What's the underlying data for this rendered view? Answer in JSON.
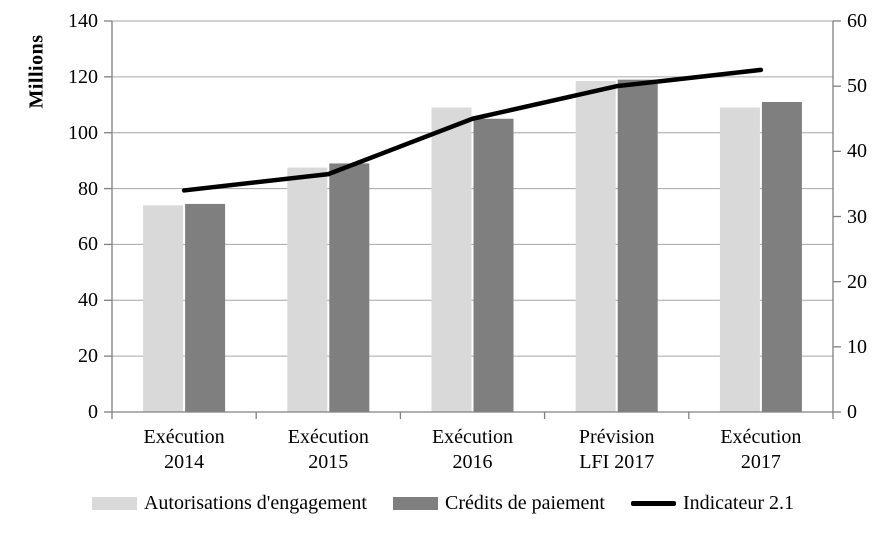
{
  "chart_data": {
    "type": "bar",
    "subtype": "combo-bar-line",
    "title": "",
    "ylabel": "Millions",
    "xlabel": "",
    "grid": true,
    "legend_position": "bottom",
    "categories": [
      "Exécution\n2014",
      "Exécution\n2015",
      "Exécution\n2016",
      "Prévision\nLFI 2017",
      "Exécution\n2017"
    ],
    "left_axis": {
      "min": 0,
      "max": 140,
      "step": 20,
      "tick_labels": [
        "0",
        "20",
        "40",
        "60",
        "80",
        "100",
        "120",
        "140"
      ]
    },
    "right_axis": {
      "min": 0,
      "max": 60,
      "step": 10,
      "tick_labels": [
        "0",
        "10",
        "20",
        "30",
        "40",
        "50",
        "60"
      ]
    },
    "series": [
      {
        "name": "Autorisations d'engagement",
        "type": "bar",
        "axis": "left",
        "color": "#d9d9d9",
        "values": [
          74,
          87.5,
          109,
          118.5,
          109
        ]
      },
      {
        "name": "Crédits de paiement",
        "type": "bar",
        "axis": "left",
        "color": "#7f7f7f",
        "values": [
          74.5,
          89,
          105,
          119,
          111
        ]
      },
      {
        "name": "Indicateur 2.1",
        "type": "line",
        "axis": "right",
        "color": "#000000",
        "values": [
          34,
          36.5,
          45,
          50,
          52.5
        ]
      }
    ]
  },
  "colors": {
    "background": "#ffffff",
    "gridline": "#a6a6a6",
    "axis": "#808080",
    "text": "#000000"
  }
}
